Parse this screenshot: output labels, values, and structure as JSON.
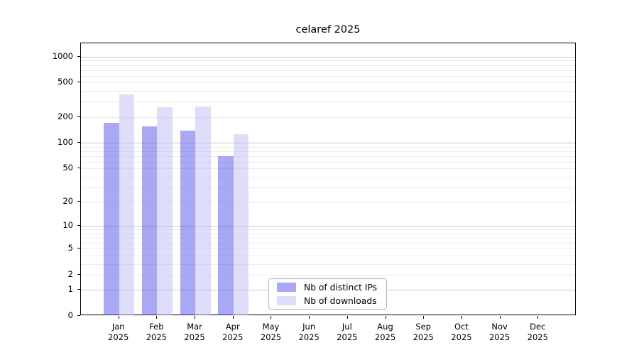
{
  "chart_data": {
    "type": "bar",
    "title": "celaref 2025",
    "categories": [
      "Jan",
      "Feb",
      "Mar",
      "Apr",
      "May",
      "Jun",
      "Jul",
      "Aug",
      "Sep",
      "Oct",
      "Nov",
      "Dec"
    ],
    "x_year": "2025",
    "series": [
      {
        "name": "Nb of distinct IPs",
        "color": "#a8a8f5",
        "fill": "rgba(81,81,235,0.5)",
        "values": [
          172,
          156,
          138,
          69,
          0,
          0,
          0,
          0,
          0,
          0,
          0,
          0
        ]
      },
      {
        "name": "Nb of downloads",
        "color": "#dedefa",
        "fill": "rgba(189,189,245,0.5)",
        "values": [
          365,
          258,
          266,
          125,
          0,
          0,
          0,
          0,
          0,
          0,
          0,
          0
        ]
      }
    ],
    "y_ticks": [
      0,
      1,
      2,
      5,
      10,
      20,
      50,
      100,
      200,
      500,
      1000
    ],
    "y_scale": "log10(value+1)",
    "y_max": 1430,
    "grid": true,
    "legend": {
      "entries": [
        "Nb of distinct IPs",
        "Nb of downloads"
      ],
      "position": "bottom-center"
    }
  },
  "colors": {
    "background": "#ffffff",
    "spine": "#000000",
    "grid_major": "#c9c9c9",
    "grid_minor": "#ececec",
    "text": "#000000",
    "legend_border": "#b3b3b3"
  }
}
